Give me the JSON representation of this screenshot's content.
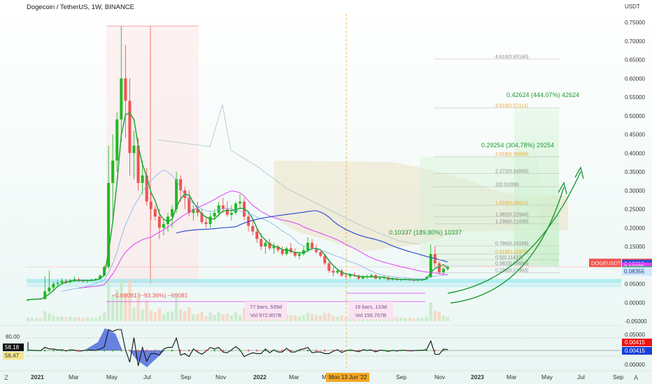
{
  "header": {
    "title": "Dogecoin / TetherUS, 1W, BINANCE",
    "currency": "USDT"
  },
  "controls": {
    "zoom_left": "Z",
    "auto_scale": "A"
  },
  "colors": {
    "up": "#26a69a",
    "down": "#ef5350",
    "bright_up": "#22b922",
    "pink": "#e040fb",
    "blue": "#3550d0",
    "lightblue": "#7fb0e8",
    "green_line": "#23a33a",
    "cloud": "#e8dcb8"
  },
  "chart_data": {
    "type": "candlestick",
    "title": "Dogecoin / TetherUS, 1W, BINANCE",
    "price_axis": {
      "unit": "USDT",
      "ticks": [
        "0.75000",
        "0.70000",
        "0.65000",
        "0.60000",
        "0.55000",
        "0.50000",
        "0.45000",
        "0.40000",
        "0.35000",
        "0.30000",
        "0.25000",
        "0.20000",
        "0.15000",
        "0.10000",
        "0.05000",
        "0.00000",
        "-0.05000"
      ],
      "ylim": [
        -0.05,
        0.78
      ]
    },
    "time_axis": {
      "ticks": [
        "2021",
        "Mar",
        "May",
        "Jul",
        "Sep",
        "Nov",
        "2022",
        "Mar",
        "May",
        "Sep",
        "Nov",
        "2023",
        "Mar",
        "May",
        "Jul",
        "Sep"
      ],
      "crosshair_label": "Mon 13 Jun '22"
    },
    "price_labels": [
      {
        "name": "DOGEUSDT",
        "value": "0.09537",
        "sub": "6d 21h",
        "color": "#ef5350"
      },
      {
        "name": "",
        "value": "0.10610",
        "color": "#3550d0"
      },
      {
        "name": "",
        "value": "0.10325",
        "color": "#e040fb"
      },
      {
        "name": "",
        "value": "0.08598",
        "color": "#22a34a"
      },
      {
        "name": "",
        "value": "0.08355",
        "color": "#cfe8ff"
      }
    ],
    "annotations": {
      "measure_down": "−0.69081 (−93.36%) −69081",
      "range1_bars": "77 bars, 539d",
      "range1_vol": "Vol 972.857B",
      "range2_bars": "19 bars, 133d",
      "range2_vol": "Vol 156.767B",
      "target1": "0.10337 (189.80%) 10337",
      "target2": "0.29254 (304.78%) 29254",
      "target3": "0.42624 (444.07%) 42624"
    },
    "fib_levels": [
      {
        "label": "4.618(0.65160)",
        "value": 0.6516
      },
      {
        "label": "3.618(0.52114)",
        "value": 0.52114
      },
      {
        "label": "2.618(0.39068)",
        "value": 0.39068
      },
      {
        "label": "2.272(0.34555)",
        "value": 0.34555
      },
      {
        "label": "2(0.31006)",
        "value": 0.31006
      },
      {
        "label": "1.618(0.26022)",
        "value": 0.26022
      },
      {
        "label": "1.382(0.22944)",
        "value": 0.22944
      },
      {
        "label": "1.236(0.21039)",
        "value": 0.21039
      },
      {
        "label": "0.786(0.15168)",
        "value": 0.15168
      },
      {
        "label": "0.618(0.12976)",
        "value": 0.12976
      },
      {
        "label": "0.5(0.11437)",
        "value": 0.11437
      },
      {
        "label": "0.382(0.09898)",
        "value": 0.09898
      },
      {
        "label": "0.236(0.07993)",
        "value": 0.07993
      }
    ],
    "oscillator": {
      "ticks": [
        "80.00",
        "0.05000",
        "0.00000"
      ],
      "left_labels": [
        "58.18",
        "56.47"
      ],
      "right_labels": [
        "0.00415",
        "0.00415"
      ]
    },
    "candles": [
      [
        0.005,
        0.009,
        0.004,
        0.008
      ],
      [
        0.008,
        0.01,
        0.006,
        0.009
      ],
      [
        0.009,
        0.011,
        0.007,
        0.01
      ],
      [
        0.01,
        0.012,
        0.008,
        0.009
      ],
      [
        0.009,
        0.07,
        0.008,
        0.03
      ],
      [
        0.03,
        0.085,
        0.025,
        0.04
      ],
      [
        0.04,
        0.055,
        0.03,
        0.05
      ],
      [
        0.05,
        0.06,
        0.045,
        0.053
      ],
      [
        0.053,
        0.065,
        0.048,
        0.058
      ],
      [
        0.058,
        0.063,
        0.05,
        0.055
      ],
      [
        0.055,
        0.062,
        0.05,
        0.06
      ],
      [
        0.06,
        0.07,
        0.055,
        0.062
      ],
      [
        0.062,
        0.066,
        0.055,
        0.058
      ],
      [
        0.058,
        0.062,
        0.054,
        0.057
      ],
      [
        0.057,
        0.062,
        0.052,
        0.06
      ],
      [
        0.06,
        0.064,
        0.056,
        0.061
      ],
      [
        0.061,
        0.065,
        0.058,
        0.063
      ],
      [
        0.063,
        0.075,
        0.06,
        0.072
      ],
      [
        0.072,
        0.1,
        0.07,
        0.095
      ],
      [
        0.095,
        0.42,
        0.09,
        0.32
      ],
      [
        0.32,
        0.45,
        0.22,
        0.38
      ],
      [
        0.38,
        0.51,
        0.35,
        0.49
      ],
      [
        0.49,
        0.74,
        0.43,
        0.6
      ],
      [
        0.6,
        0.69,
        0.44,
        0.54
      ],
      [
        0.54,
        0.6,
        0.34,
        0.4
      ],
      [
        0.4,
        0.46,
        0.33,
        0.42
      ],
      [
        0.42,
        0.44,
        0.3,
        0.32
      ],
      [
        0.32,
        0.38,
        0.29,
        0.34
      ],
      [
        0.34,
        0.36,
        0.26,
        0.27
      ],
      [
        0.27,
        0.3,
        0.22,
        0.25
      ],
      [
        0.25,
        0.26,
        0.22,
        0.23
      ],
      [
        0.23,
        0.25,
        0.17,
        0.2
      ],
      [
        0.2,
        0.22,
        0.18,
        0.21
      ],
      [
        0.21,
        0.24,
        0.19,
        0.23
      ],
      [
        0.23,
        0.26,
        0.2,
        0.25
      ],
      [
        0.25,
        0.35,
        0.24,
        0.33
      ],
      [
        0.33,
        0.34,
        0.27,
        0.3
      ],
      [
        0.3,
        0.31,
        0.25,
        0.28
      ],
      [
        0.28,
        0.3,
        0.23,
        0.24
      ],
      [
        0.24,
        0.26,
        0.22,
        0.25
      ],
      [
        0.25,
        0.27,
        0.23,
        0.24
      ],
      [
        0.24,
        0.25,
        0.21,
        0.215
      ],
      [
        0.215,
        0.23,
        0.2,
        0.21
      ],
      [
        0.21,
        0.24,
        0.2,
        0.23
      ],
      [
        0.23,
        0.25,
        0.22,
        0.24
      ],
      [
        0.24,
        0.27,
        0.23,
        0.26
      ],
      [
        0.26,
        0.28,
        0.24,
        0.25
      ],
      [
        0.25,
        0.27,
        0.23,
        0.235
      ],
      [
        0.235,
        0.26,
        0.22,
        0.24
      ],
      [
        0.24,
        0.27,
        0.235,
        0.265
      ],
      [
        0.265,
        0.29,
        0.25,
        0.27
      ],
      [
        0.27,
        0.28,
        0.22,
        0.23
      ],
      [
        0.23,
        0.24,
        0.19,
        0.205
      ],
      [
        0.205,
        0.22,
        0.18,
        0.19
      ],
      [
        0.19,
        0.2,
        0.16,
        0.17
      ],
      [
        0.17,
        0.185,
        0.14,
        0.15
      ],
      [
        0.15,
        0.165,
        0.13,
        0.16
      ],
      [
        0.16,
        0.17,
        0.14,
        0.145
      ],
      [
        0.145,
        0.16,
        0.13,
        0.15
      ],
      [
        0.15,
        0.155,
        0.135,
        0.14
      ],
      [
        0.14,
        0.15,
        0.125,
        0.13
      ],
      [
        0.13,
        0.15,
        0.125,
        0.145
      ],
      [
        0.145,
        0.16,
        0.13,
        0.135
      ],
      [
        0.135,
        0.145,
        0.12,
        0.125
      ],
      [
        0.125,
        0.135,
        0.115,
        0.13
      ],
      [
        0.13,
        0.15,
        0.125,
        0.14
      ],
      [
        0.14,
        0.175,
        0.135,
        0.16
      ],
      [
        0.16,
        0.17,
        0.14,
        0.145
      ],
      [
        0.145,
        0.155,
        0.13,
        0.135
      ],
      [
        0.135,
        0.14,
        0.12,
        0.125
      ],
      [
        0.125,
        0.13,
        0.1,
        0.105
      ],
      [
        0.105,
        0.11,
        0.08,
        0.085
      ],
      [
        0.085,
        0.095,
        0.07,
        0.08
      ],
      [
        0.08,
        0.09,
        0.075,
        0.085
      ],
      [
        0.085,
        0.09,
        0.068,
        0.072
      ],
      [
        0.072,
        0.08,
        0.065,
        0.07
      ],
      [
        0.07,
        0.078,
        0.064,
        0.074
      ],
      [
        0.074,
        0.08,
        0.068,
        0.072
      ],
      [
        0.072,
        0.075,
        0.06,
        0.064
      ],
      [
        0.064,
        0.072,
        0.062,
        0.068
      ],
      [
        0.068,
        0.075,
        0.063,
        0.07
      ],
      [
        0.07,
        0.078,
        0.066,
        0.073
      ],
      [
        0.073,
        0.076,
        0.062,
        0.064
      ],
      [
        0.064,
        0.07,
        0.06,
        0.066
      ],
      [
        0.066,
        0.072,
        0.062,
        0.067
      ],
      [
        0.067,
        0.07,
        0.058,
        0.061
      ],
      [
        0.061,
        0.066,
        0.058,
        0.063
      ],
      [
        0.063,
        0.067,
        0.059,
        0.06
      ],
      [
        0.06,
        0.064,
        0.057,
        0.062
      ],
      [
        0.062,
        0.066,
        0.059,
        0.063
      ],
      [
        0.063,
        0.064,
        0.058,
        0.06
      ],
      [
        0.06,
        0.062,
        0.058,
        0.059
      ],
      [
        0.059,
        0.063,
        0.057,
        0.061
      ],
      [
        0.061,
        0.064,
        0.058,
        0.062
      ],
      [
        0.062,
        0.07,
        0.06,
        0.068
      ],
      [
        0.068,
        0.155,
        0.066,
        0.13
      ],
      [
        0.13,
        0.15,
        0.095,
        0.105
      ],
      [
        0.105,
        0.11,
        0.075,
        0.08
      ],
      [
        0.08,
        0.095,
        0.076,
        0.09
      ],
      [
        0.09,
        0.1,
        0.085,
        0.095
      ]
    ]
  }
}
